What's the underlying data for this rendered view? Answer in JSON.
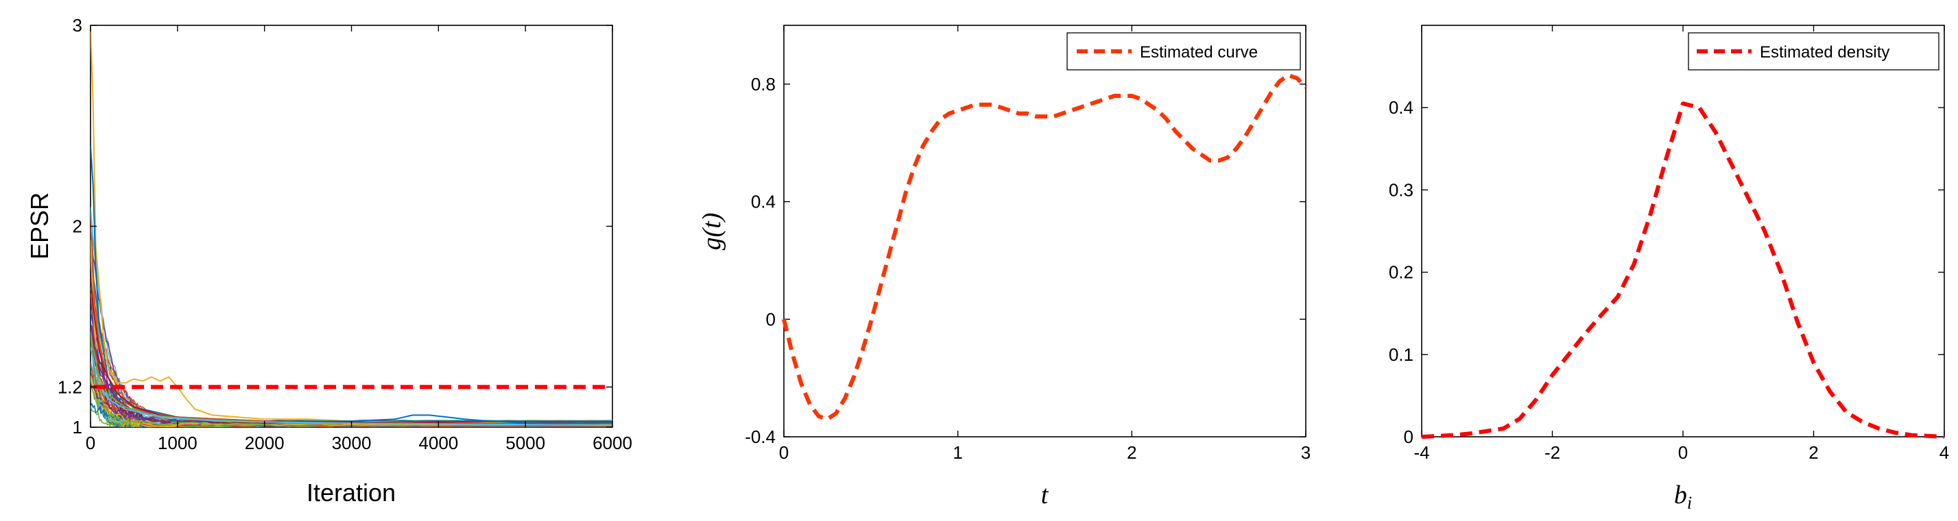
{
  "chart_data": [
    {
      "type": "line",
      "xlabel": "Iteration",
      "ylabel": "EPSR",
      "xlim": [
        0,
        6000
      ],
      "ylim": [
        1,
        3
      ],
      "x_ticks": [
        0,
        1000,
        2000,
        3000,
        4000,
        5000,
        6000
      ],
      "y_ticks": [
        1,
        1.2,
        2,
        3
      ],
      "grid": false,
      "threshold": {
        "y": 1.2,
        "style": "dashed",
        "color": "#ff0000"
      },
      "series_colors": [
        "#0072bd",
        "#d95319",
        "#edb120",
        "#7e2f8e",
        "#77ac30",
        "#4dbeee",
        "#a2142f"
      ],
      "series_count": 40,
      "traces": [
        {
          "color": "#edb120",
          "x": [
            0,
            30,
            60,
            100,
            150,
            200,
            300,
            400,
            500,
            600,
            700,
            800,
            900,
            1000,
            1100,
            1200,
            1400,
            1700,
            2000,
            2500,
            3000,
            4000,
            5000,
            6000
          ],
          "y": [
            3.0,
            2.6,
            1.9,
            1.7,
            1.45,
            1.3,
            1.22,
            1.22,
            1.24,
            1.23,
            1.25,
            1.23,
            1.25,
            1.2,
            1.14,
            1.09,
            1.06,
            1.05,
            1.04,
            1.04,
            1.03,
            1.02,
            1.02,
            1.02
          ]
        },
        {
          "color": "#0072bd",
          "x": [
            0,
            30,
            60,
            100,
            200,
            300,
            500,
            800,
            1000,
            1500,
            2000,
            3000,
            3500,
            3700,
            3900,
            4100,
            4300,
            4600,
            5000,
            6000
          ],
          "y": [
            2.4,
            2.2,
            1.8,
            1.5,
            1.25,
            1.15,
            1.1,
            1.07,
            1.05,
            1.04,
            1.03,
            1.03,
            1.04,
            1.06,
            1.06,
            1.05,
            1.04,
            1.03,
            1.02,
            1.02
          ]
        },
        {
          "color": "#d95319",
          "x": [
            0,
            20,
            50,
            100,
            200,
            300,
            400,
            600,
            1000,
            2000,
            4000,
            6000
          ],
          "y": [
            2.0,
            1.9,
            1.6,
            1.4,
            1.25,
            1.18,
            1.12,
            1.08,
            1.05,
            1.03,
            1.02,
            1.01
          ]
        },
        {
          "color": "#a2142f",
          "x": [
            0,
            30,
            60,
            100,
            150,
            200,
            300,
            500,
            800,
            1200,
            2000,
            4000,
            6000
          ],
          "y": [
            1.75,
            1.6,
            1.5,
            1.38,
            1.3,
            1.25,
            1.17,
            1.1,
            1.06,
            1.04,
            1.03,
            1.02,
            1.01
          ]
        },
        {
          "color": "#7e2f8e",
          "x": [
            0,
            50,
            100,
            200,
            300,
            500,
            800,
            1500,
            3000,
            6000
          ],
          "y": [
            1.5,
            1.4,
            1.3,
            1.2,
            1.14,
            1.08,
            1.05,
            1.03,
            1.02,
            1.01
          ]
        },
        {
          "color": "#77ac30",
          "x": [
            0,
            50,
            100,
            200,
            400,
            700,
            1200,
            2500,
            6000
          ],
          "y": [
            1.45,
            1.35,
            1.25,
            1.16,
            1.1,
            1.06,
            1.04,
            1.02,
            1.01
          ]
        },
        {
          "color": "#4dbeee",
          "x": [
            0,
            50,
            100,
            200,
            400,
            800,
            1500,
            3000,
            6000
          ],
          "y": [
            1.4,
            1.3,
            1.22,
            1.14,
            1.09,
            1.05,
            1.03,
            1.02,
            1.01
          ]
        }
      ]
    },
    {
      "type": "line",
      "xlabel": "t",
      "ylabel": "g(t)",
      "xlim": [
        0,
        3
      ],
      "ylim": [
        -0.4,
        1.0
      ],
      "x_ticks": [
        0,
        1,
        2,
        3
      ],
      "y_ticks": [
        -0.4,
        0,
        0.4,
        0.8
      ],
      "grid": false,
      "legend": {
        "position": "top-right",
        "entries": [
          "Estimated curve"
        ]
      },
      "series": [
        {
          "name": "Estimated curve",
          "color": "#ff3300",
          "style": "dashed",
          "x": [
            0,
            0.05,
            0.1,
            0.15,
            0.2,
            0.25,
            0.3,
            0.35,
            0.4,
            0.45,
            0.5,
            0.55,
            0.6,
            0.65,
            0.7,
            0.75,
            0.8,
            0.85,
            0.9,
            0.95,
            1.0,
            1.05,
            1.1,
            1.15,
            1.2,
            1.25,
            1.3,
            1.35,
            1.4,
            1.45,
            1.5,
            1.55,
            1.6,
            1.65,
            1.7,
            1.75,
            1.8,
            1.85,
            1.9,
            1.95,
            2.0,
            2.05,
            2.1,
            2.15,
            2.2,
            2.25,
            2.3,
            2.35,
            2.4,
            2.45,
            2.5,
            2.55,
            2.6,
            2.65,
            2.7,
            2.75,
            2.8,
            2.85,
            2.9,
            2.95,
            3.0
          ],
          "y": [
            0.0,
            -0.12,
            -0.22,
            -0.29,
            -0.33,
            -0.34,
            -0.32,
            -0.27,
            -0.2,
            -0.11,
            -0.01,
            0.1,
            0.21,
            0.32,
            0.43,
            0.52,
            0.59,
            0.64,
            0.68,
            0.7,
            0.71,
            0.72,
            0.73,
            0.73,
            0.73,
            0.72,
            0.71,
            0.7,
            0.7,
            0.69,
            0.69,
            0.69,
            0.7,
            0.71,
            0.72,
            0.73,
            0.74,
            0.75,
            0.76,
            0.76,
            0.76,
            0.75,
            0.73,
            0.71,
            0.68,
            0.64,
            0.61,
            0.58,
            0.56,
            0.54,
            0.54,
            0.55,
            0.58,
            0.62,
            0.67,
            0.72,
            0.77,
            0.81,
            0.83,
            0.82,
            0.79
          ]
        }
      ]
    },
    {
      "type": "line",
      "xlabel": "b_i",
      "ylabel": "",
      "xlim": [
        -4,
        4
      ],
      "ylim": [
        0,
        0.5
      ],
      "x_ticks": [
        -4,
        -2,
        0,
        2,
        4
      ],
      "y_ticks": [
        0,
        0.1,
        0.2,
        0.3,
        0.4
      ],
      "grid": false,
      "legend": {
        "position": "top-right",
        "entries": [
          "Estimated density"
        ]
      },
      "series": [
        {
          "name": "Estimated density",
          "color": "#ff0000",
          "style": "dashed",
          "x": [
            -4.0,
            -3.75,
            -3.5,
            -3.25,
            -3.0,
            -2.75,
            -2.5,
            -2.25,
            -2.0,
            -1.75,
            -1.5,
            -1.25,
            -1.0,
            -0.75,
            -0.5,
            -0.25,
            0.0,
            0.25,
            0.5,
            0.75,
            1.0,
            1.25,
            1.5,
            1.75,
            2.0,
            2.25,
            2.5,
            2.75,
            3.0,
            3.25,
            3.5,
            3.75,
            4.0
          ],
          "y": [
            0.0,
            0.001,
            0.002,
            0.004,
            0.007,
            0.01,
            0.022,
            0.045,
            0.075,
            0.1,
            0.125,
            0.148,
            0.17,
            0.21,
            0.27,
            0.34,
            0.405,
            0.4,
            0.37,
            0.33,
            0.29,
            0.25,
            0.2,
            0.14,
            0.09,
            0.055,
            0.03,
            0.018,
            0.01,
            0.005,
            0.002,
            0.001,
            0.0
          ]
        }
      ]
    }
  ]
}
